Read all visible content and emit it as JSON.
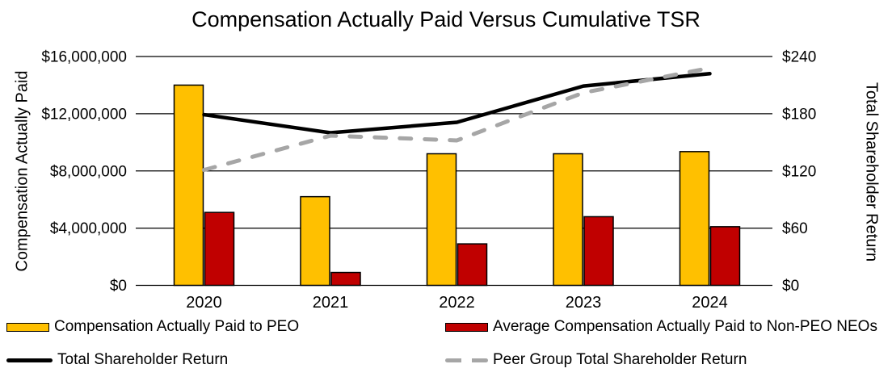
{
  "chart_data": {
    "type": "combo-bar-line",
    "title": "Compensation Actually Paid Versus Cumulative TSR",
    "categories": [
      "2020",
      "2021",
      "2022",
      "2023",
      "2024"
    ],
    "series": [
      {
        "name": "Compensation Actually Paid to PEO",
        "type": "bar",
        "axis": "left",
        "color": "#FFC000",
        "values": [
          14000000,
          6200000,
          9200000,
          9200000,
          9350000
        ]
      },
      {
        "name": "Average Compensation Actually Paid to Non-PEO NEOs",
        "type": "bar",
        "axis": "left",
        "color": "#C00000",
        "values": [
          5100000,
          900000,
          2900000,
          4800000,
          4100000
        ]
      },
      {
        "name": "Total Shareholder Return",
        "type": "line",
        "style": "solid",
        "axis": "right",
        "color": "#000000",
        "values": [
          179,
          160,
          171,
          209,
          222
        ]
      },
      {
        "name": "Peer Group Total Shareholder Return",
        "type": "line",
        "style": "dashed",
        "axis": "right",
        "color": "#A6A6A6",
        "values": [
          121,
          157,
          152,
          202,
          228
        ]
      }
    ],
    "left_axis": {
      "title": "Compensation Actually Paid",
      "min": 0,
      "max": 16000000,
      "ticks": [
        "$0",
        "$4,000,000",
        "$8,000,000",
        "$12,000,000",
        "$16,000,000"
      ]
    },
    "right_axis": {
      "title": "Total Shareholder Return",
      "min": 0,
      "max": 240,
      "ticks": [
        "$0",
        "$60",
        "$120",
        "$180",
        "$240"
      ]
    },
    "grid": true,
    "legend_position": "bottom"
  }
}
